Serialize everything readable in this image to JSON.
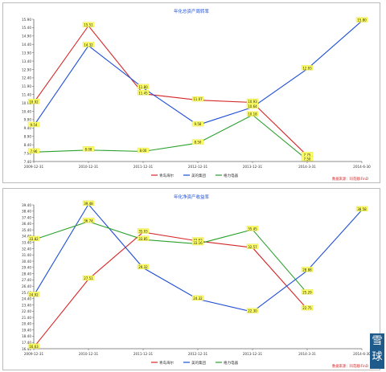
{
  "watermark": {
    "char1": "雪",
    "char2": "球"
  },
  "chart_data": [
    {
      "type": "line",
      "title": "年化总资产周转率",
      "source_note": "数据来源：同花顺iFinD",
      "x": [
        "2009-12-31",
        "2010-12-31",
        "2011-12-31",
        "2012-12-31",
        "2013-12-31",
        "2014-3-31",
        "2014-6-30"
      ],
      "y_ticks": [
        "7.40",
        "7.90",
        "8.40",
        "8.90",
        "9.40",
        "9.90",
        "10.40",
        "10.90",
        "11.40",
        "11.90",
        "12.40",
        "12.90",
        "13.40",
        "13.90",
        "14.40",
        "14.90",
        "15.40",
        "15.90"
      ],
      "ylim": [
        7.4,
        15.9
      ],
      "series": [
        {
          "name": "青岛海尔",
          "color": "#d62728",
          "values": [
            10.92,
            15.51,
            11.45,
            11.07,
            10.93,
            7.75,
            null
          ],
          "labels": [
            "10.92",
            "15.51",
            "11.45",
            "11.07",
            "10.93",
            "7.75",
            ""
          ]
        },
        {
          "name": "美的集团",
          "color": "#1f4fd6",
          "values": [
            9.54,
            14.32,
            11.8,
            9.58,
            10.64,
            12.93,
            15.8
          ],
          "labels": [
            "9.54",
            "14.32",
            "11.80",
            "9.58",
            "10.64",
            "12.93",
            "15.80"
          ]
        },
        {
          "name": "格力电器",
          "color": "#2ca02c",
          "values": [
            7.96,
            8.08,
            8.0,
            8.5,
            10.18,
            7.5,
            null
          ],
          "labels": [
            "7.96",
            "8.08",
            "8.00",
            "8.50",
            "10.18",
            "7.50",
            ""
          ]
        }
      ],
      "grid": false,
      "legend": "bottom-center"
    },
    {
      "type": "line",
      "title": "年化净资产收益率",
      "source_note": "数据来源：同花顺iFinD",
      "x": [
        "2009-12-31",
        "2010-12-31",
        "2011-12-31",
        "2012-12-31",
        "2013-12-31",
        "2014-3-31",
        "2014-6-30"
      ],
      "y_ticks": [
        "16.40",
        "17.40",
        "18.40",
        "19.40",
        "20.40",
        "21.40",
        "22.40",
        "23.40",
        "24.40",
        "25.40",
        "26.40",
        "27.40",
        "28.40",
        "29.40",
        "30.40",
        "31.40",
        "32.40",
        "33.40",
        "34.40",
        "35.40",
        "36.40",
        "37.40",
        "38.40",
        "39.40"
      ],
      "ylim": [
        16.4,
        39.4
      ],
      "series": [
        {
          "name": "青岛海尔",
          "color": "#d62728",
          "values": [
            16.63,
            27.51,
            35.03,
            33.62,
            32.57,
            22.75,
            null
          ],
          "labels": [
            "16.63",
            "27.51",
            "35.03",
            "33.62",
            "32.57",
            "22.75",
            ""
          ]
        },
        {
          "name": "美的集团",
          "color": "#1f4fd6",
          "values": [
            24.92,
            39.48,
            29.32,
            24.32,
            22.3,
            28.88,
            38.58
          ],
          "labels": [
            "24.92",
            "39.48",
            "29.32",
            "24.32",
            "22.30",
            "28.88",
            "38.58"
          ]
        },
        {
          "name": "格力电器",
          "color": "#2ca02c",
          "values": [
            33.82,
            36.74,
            33.85,
            33.16,
            35.45,
            25.29,
            null
          ],
          "labels": [
            "33.82",
            "36.74",
            "33.85",
            "33.16",
            "35.45",
            "25.29",
            ""
          ]
        }
      ],
      "grid": false,
      "legend": "bottom-center"
    }
  ]
}
